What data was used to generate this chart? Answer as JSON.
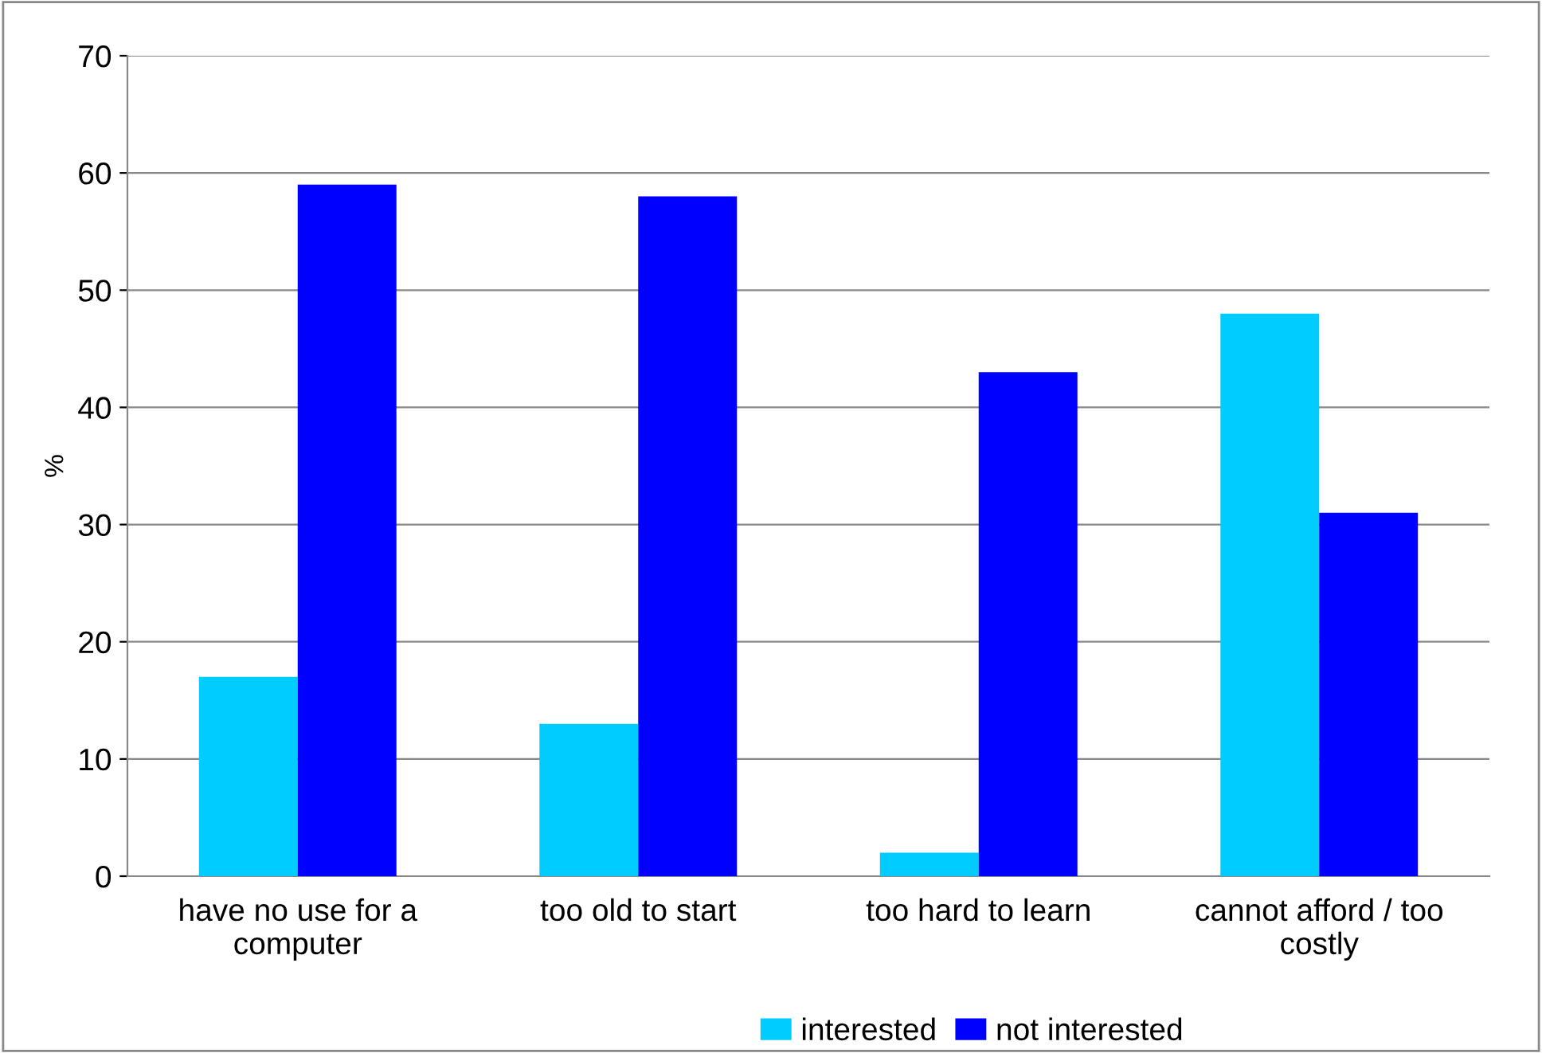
{
  "chart_data": {
    "type": "bar",
    "ylabel": "%",
    "categories": [
      "have no use for a\ncomputer",
      "too old to start",
      "too hard to learn",
      "cannot afford / too\ncostly"
    ],
    "series": [
      {
        "name": "interested",
        "color": "#00ccff",
        "values": [
          17,
          13,
          2,
          48
        ]
      },
      {
        "name": "not interested",
        "color": "#0000ff",
        "values": [
          59,
          58,
          43,
          31
        ]
      }
    ],
    "ylim": [
      0,
      70
    ],
    "yticks": [
      0,
      10,
      20,
      30,
      40,
      50,
      60,
      70
    ],
    "grid": "y",
    "legend": "bottom"
  }
}
